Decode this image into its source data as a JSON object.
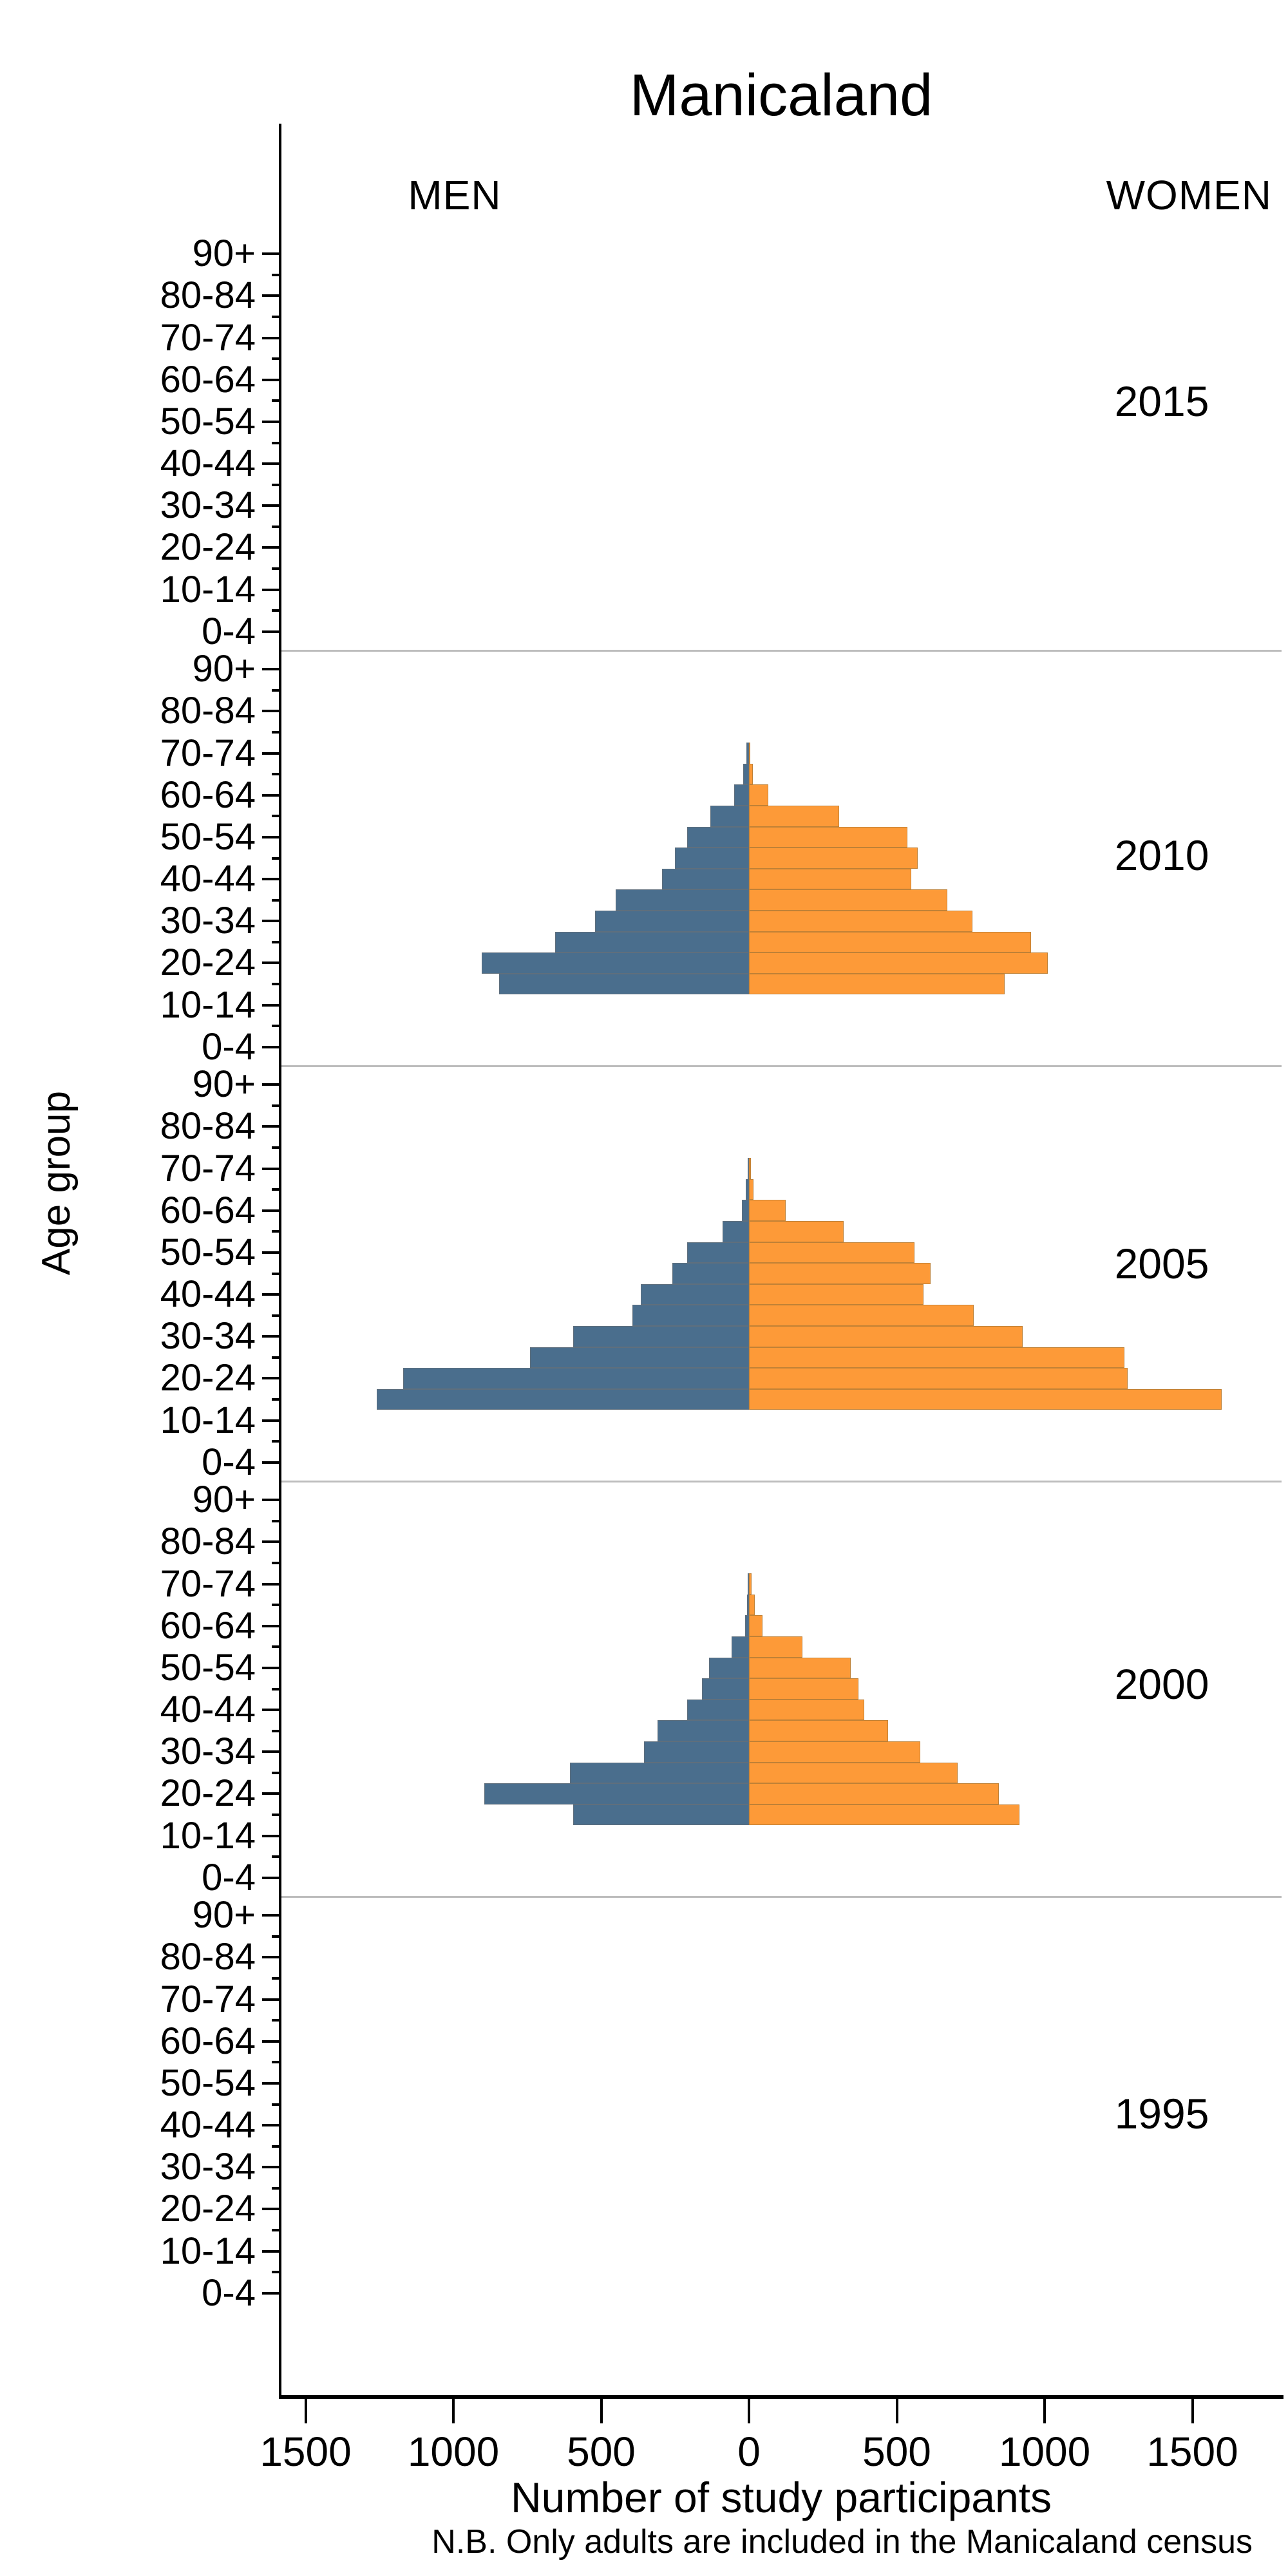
{
  "title": "Manicaland",
  "headers": {
    "men": "MEN",
    "women": "WOMEN"
  },
  "axis_titles": {
    "x": "Number of study participants",
    "y": "Age group"
  },
  "footnote": "N.B. Only adults are included in the Manicaland census",
  "chart_data": {
    "type": "bar",
    "subtype": "population-pyramid-small-multiples",
    "title": "Manicaland",
    "xlabel": "Number of study participants",
    "ylabel": "Age group",
    "legend": {
      "left_series": "MEN",
      "right_series": "WOMEN"
    },
    "note": "N.B. Only adults are included in the Manicaland census",
    "grid": false,
    "x_axis": {
      "tick_values": [
        -1500,
        -1000,
        -500,
        0,
        500,
        1000,
        1500
      ],
      "tick_labels": [
        "1500",
        "1000",
        "500",
        "0",
        "500",
        "1000",
        "1500"
      ],
      "range": [
        -1620,
        1800
      ]
    },
    "y_axis": {
      "rows_top_to_bottom": [
        "90+",
        "85-89",
        "80-84",
        "75-79",
        "70-74",
        "65-69",
        "60-64",
        "55-59",
        "50-54",
        "45-49",
        "40-44",
        "35-39",
        "30-34",
        "25-29",
        "20-24",
        "15-19",
        "10-14",
        "5-9",
        "0-4"
      ],
      "labeled_ticks": [
        "90+",
        "80-84",
        "70-74",
        "60-64",
        "50-54",
        "40-44",
        "30-34",
        "20-24",
        "10-14",
        "0-4"
      ]
    },
    "panels": [
      {
        "year": "2015",
        "bars": []
      },
      {
        "year": "2010",
        "bars": [
          {
            "age": "15-19",
            "men": 845,
            "women": 865
          },
          {
            "age": "20-24",
            "men": 905,
            "women": 1010
          },
          {
            "age": "25-29",
            "men": 655,
            "women": 955
          },
          {
            "age": "30-34",
            "men": 520,
            "women": 755
          },
          {
            "age": "35-39",
            "men": 450,
            "women": 670
          },
          {
            "age": "40-44",
            "men": 295,
            "women": 550
          },
          {
            "age": "45-49",
            "men": 250,
            "women": 570
          },
          {
            "age": "50-54",
            "men": 210,
            "women": 535
          },
          {
            "age": "55-59",
            "men": 130,
            "women": 305
          },
          {
            "age": "60-64",
            "men": 50,
            "women": 65
          },
          {
            "age": "65-69",
            "men": 20,
            "women": 12
          },
          {
            "age": "70-74",
            "men": 8,
            "women": 5
          }
        ]
      },
      {
        "year": "2005",
        "bars": [
          {
            "age": "15-19",
            "men": 1260,
            "women": 1600
          },
          {
            "age": "20-24",
            "men": 1170,
            "women": 1280
          },
          {
            "age": "25-29",
            "men": 740,
            "women": 1270
          },
          {
            "age": "30-34",
            "men": 595,
            "women": 925
          },
          {
            "age": "35-39",
            "men": 395,
            "women": 760
          },
          {
            "age": "40-44",
            "men": 365,
            "women": 590
          },
          {
            "age": "45-49",
            "men": 260,
            "women": 615
          },
          {
            "age": "50-54",
            "men": 210,
            "women": 560
          },
          {
            "age": "55-59",
            "men": 90,
            "women": 320
          },
          {
            "age": "60-64",
            "men": 25,
            "women": 125
          },
          {
            "age": "65-69",
            "men": 10,
            "women": 15
          },
          {
            "age": "70-74",
            "men": 5,
            "women": 6
          }
        ]
      },
      {
        "year": "2000",
        "bars": [
          {
            "age": "15-19",
            "men": 595,
            "women": 915
          },
          {
            "age": "20-24",
            "men": 895,
            "women": 845
          },
          {
            "age": "25-29",
            "men": 605,
            "women": 705
          },
          {
            "age": "30-34",
            "men": 355,
            "women": 580
          },
          {
            "age": "35-39",
            "men": 310,
            "women": 470
          },
          {
            "age": "40-44",
            "men": 210,
            "women": 390
          },
          {
            "age": "45-49",
            "men": 160,
            "women": 370
          },
          {
            "age": "50-54",
            "men": 135,
            "women": 345
          },
          {
            "age": "55-59",
            "men": 58,
            "women": 180
          },
          {
            "age": "60-64",
            "men": 12,
            "women": 45
          },
          {
            "age": "65-69",
            "men": 6,
            "women": 20
          },
          {
            "age": "70-74",
            "men": 4,
            "women": 8
          }
        ]
      },
      {
        "year": "1995",
        "bars": []
      }
    ],
    "colors": {
      "men": "#4A6E8D",
      "women": "#FD9A38",
      "men_border": "#5f6f7d",
      "women_border": "#c08136",
      "axis": "#000000",
      "panel_separator": "#bdbdbd",
      "background": "#ffffff",
      "text": "#000000"
    }
  }
}
